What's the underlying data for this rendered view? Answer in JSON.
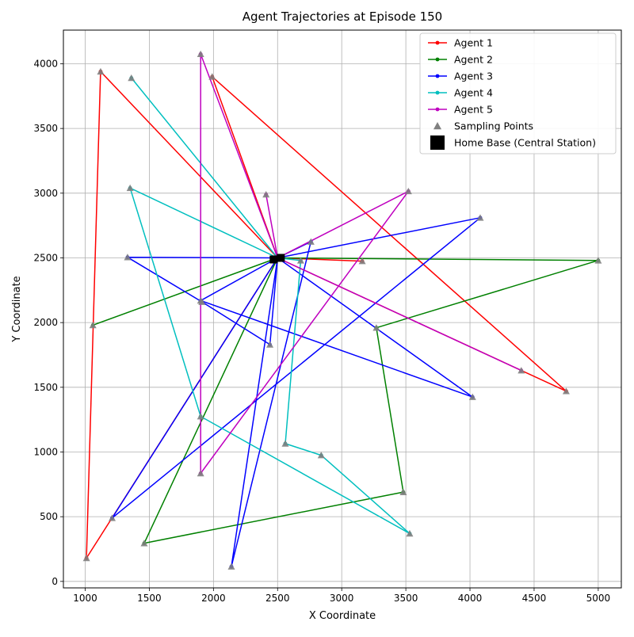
{
  "chart_data": {
    "type": "line",
    "title": "Agent Trajectories at Episode 150",
    "xlabel": "X Coordinate",
    "ylabel": "Y Coordinate",
    "xlim": [
      830,
      5180
    ],
    "ylim": [
      -50,
      4260
    ],
    "xticks": [
      1000,
      1500,
      2000,
      2500,
      3000,
      3500,
      4000,
      4500,
      5000
    ],
    "yticks": [
      0,
      500,
      1000,
      1500,
      2000,
      2500,
      3000,
      3500,
      4000
    ],
    "grid": true,
    "legend_position": "top-right",
    "home_base": {
      "name": "Home Base (Central Station)",
      "x": 2525,
      "y": 2500,
      "color": "#000000"
    },
    "sampling_points_label": "Sampling Points",
    "sampling_color": "#808080",
    "series": [
      {
        "name": "Agent 1",
        "color": "#ff0000",
        "x": [
          2500,
          1120,
          1010,
          2500,
          4750,
          1990,
          2500,
          3160,
          2500
        ],
        "y": [
          2500,
          3940,
          180,
          2500,
          1470,
          3900,
          2500,
          2475,
          2500
        ]
      },
      {
        "name": "Agent 2",
        "color": "#008000",
        "x": [
          2500,
          1060,
          2500,
          1460,
          3480,
          3270,
          5000,
          2500,
          2500
        ],
        "y": [
          2500,
          1980,
          2500,
          295,
          690,
          1960,
          2480,
          2500,
          2500
        ]
      },
      {
        "name": "Agent 3",
        "color": "#0000ff",
        "x": [
          2500,
          2760,
          2140,
          2500,
          2440,
          1910,
          1330,
          2500,
          4080,
          1210,
          2500,
          1900,
          4020,
          2500,
          2500
        ],
        "y": [
          2500,
          2625,
          115,
          2500,
          1830,
          2160,
          2505,
          2500,
          2810,
          490,
          2500,
          2170,
          1425,
          2500,
          2500
        ]
      },
      {
        "name": "Agent 4",
        "color": "#00bfbf",
        "x": [
          2500,
          1360,
          2500,
          2680,
          2560,
          2840,
          3530,
          1900,
          1350,
          2500
        ],
        "y": [
          2500,
          3890,
          2500,
          2480,
          1065,
          975,
          370,
          1275,
          3040,
          2500
        ]
      },
      {
        "name": "Agent 5",
        "color": "#bf00bf",
        "x": [
          2500,
          2410,
          2500,
          1900,
          1900,
          3520,
          2500,
          4400,
          2500
        ],
        "y": [
          2500,
          2990,
          2500,
          4075,
          835,
          3015,
          2500,
          1630,
          2500
        ]
      }
    ]
  }
}
